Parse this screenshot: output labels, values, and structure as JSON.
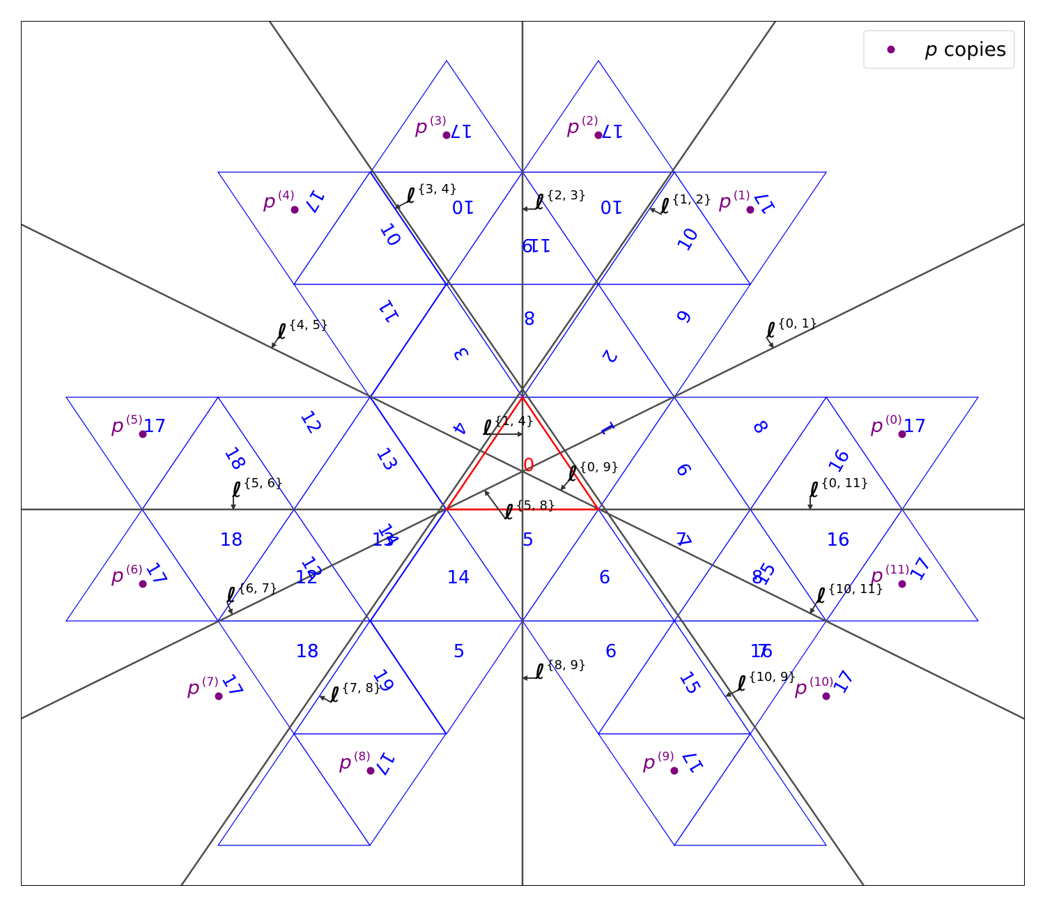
{
  "colors": {
    "net": "#0000ff",
    "base_triangle": "#ff0000",
    "mirror_lines": "#4d4d4d",
    "points": "#800080",
    "vectors": "#333333"
  },
  "legend": {
    "marker_symbol": "p",
    "text": "copies"
  },
  "face_labels": [
    {
      "text": "0",
      "kind": "base"
    },
    {
      "text": "1"
    },
    {
      "text": "2"
    },
    {
      "text": "3"
    },
    {
      "text": "4"
    },
    {
      "text": "5"
    },
    {
      "text": "6"
    },
    {
      "text": "7"
    },
    {
      "text": "8"
    },
    {
      "text": "9"
    },
    {
      "text": "10"
    },
    {
      "text": "10"
    },
    {
      "text": "10"
    },
    {
      "text": "10"
    },
    {
      "text": "11"
    },
    {
      "text": "9"
    },
    {
      "text": "11"
    },
    {
      "text": "9"
    },
    {
      "text": "12"
    },
    {
      "text": "13"
    },
    {
      "text": "18"
    },
    {
      "text": "16"
    },
    {
      "text": "7"
    },
    {
      "text": "8"
    },
    {
      "text": "18"
    },
    {
      "text": "13"
    },
    {
      "text": "14"
    },
    {
      "text": "12"
    },
    {
      "text": "12"
    },
    {
      "text": "14"
    },
    {
      "text": "15"
    },
    {
      "text": "8"
    },
    {
      "text": "16"
    },
    {
      "text": "7"
    },
    {
      "text": "6"
    },
    {
      "text": "5"
    },
    {
      "text": "18"
    },
    {
      "text": "19"
    },
    {
      "text": "15"
    },
    {
      "text": "16"
    },
    {
      "text": "18"
    },
    {
      "text": "16"
    },
    {
      "text": "17"
    },
    {
      "text": "17"
    },
    {
      "text": "17"
    },
    {
      "text": "17"
    },
    {
      "text": "17"
    },
    {
      "text": "17"
    },
    {
      "text": "17"
    },
    {
      "text": "17"
    },
    {
      "text": "17"
    },
    {
      "text": "17"
    },
    {
      "text": "17"
    },
    {
      "text": "17"
    }
  ],
  "p_copies": [
    {
      "base": "p",
      "sup": "(0)"
    },
    {
      "base": "p",
      "sup": "(1)"
    },
    {
      "base": "p",
      "sup": "(2)"
    },
    {
      "base": "p",
      "sup": "(3)"
    },
    {
      "base": "p",
      "sup": "(4)"
    },
    {
      "base": "p",
      "sup": "(5)"
    },
    {
      "base": "p",
      "sup": "(6)"
    },
    {
      "base": "p",
      "sup": "(7)"
    },
    {
      "base": "p",
      "sup": "(8)"
    },
    {
      "base": "p",
      "sup": "(9)"
    },
    {
      "base": "p",
      "sup": "(10)"
    },
    {
      "base": "p",
      "sup": "(11)"
    }
  ],
  "mirror_labels": [
    {
      "sym": "ℓ",
      "sub": "{0, 1}"
    },
    {
      "sym": "ℓ",
      "sub": "{1, 2}"
    },
    {
      "sym": "ℓ",
      "sub": "{2, 3}"
    },
    {
      "sym": "ℓ",
      "sub": "{3, 4}"
    },
    {
      "sym": "ℓ",
      "sub": "{4, 5}"
    },
    {
      "sym": "ℓ",
      "sub": "{5, 6}"
    },
    {
      "sym": "ℓ",
      "sub": "{6, 7}"
    },
    {
      "sym": "ℓ",
      "sub": "{7, 8}"
    },
    {
      "sym": "ℓ",
      "sub": "{8, 9}"
    },
    {
      "sym": "ℓ",
      "sub": "{10, 9}"
    },
    {
      "sym": "ℓ",
      "sub": "{10, 11}"
    },
    {
      "sym": "ℓ",
      "sub": "{0, 11}"
    },
    {
      "sym": "ℓ",
      "sub": "{1, 4}"
    },
    {
      "sym": "ℓ",
      "sub": "{0, 9}"
    },
    {
      "sym": "ℓ",
      "sub": "{5, 8}"
    }
  ]
}
